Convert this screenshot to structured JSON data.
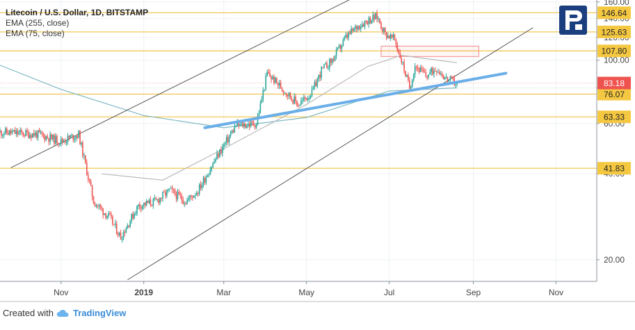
{
  "legend": {
    "title": "Litecoin / U.S. Dollar, 1D, BITSTAMP",
    "ema_long": "EMA (255, close)",
    "ema_short": "EMA (75, close)"
  },
  "footer": {
    "created_with": "Created with",
    "brand": "TradingView"
  },
  "colors": {
    "up": "#26a69a",
    "down": "#ef5350",
    "level_line": "#f0c040",
    "ema_long": "#7fb8c4",
    "ema_short": "#b8b8b8",
    "trend_blue": "#6aaee8",
    "channel": "#555555",
    "badge_gold": "#f5c842",
    "badge_red": "#ef5350",
    "logo_blue": "#1b3f7e"
  },
  "chart_data": {
    "type": "candlestick",
    "y_ticks": [
      20,
      40,
      60,
      80,
      100,
      120,
      140,
      160
    ],
    "y_tick_labels": [
      "20.00",
      "40.00",
      "60.00",
      "80.00",
      "100.00",
      "120.00",
      "140.00",
      "160.00"
    ],
    "x_labels": [
      "Nov",
      "2019",
      "Mar",
      "May",
      "Jul",
      "Sep",
      "Nov"
    ],
    "x_dates": [
      "2018-11-01",
      "2019-01-01",
      "2019-03-01",
      "2019-05-01",
      "2019-07-01",
      "2019-09-01",
      "2019-11-01"
    ],
    "x_range": [
      "2018-09-17",
      "2019-12-01"
    ],
    "y_scale": "log",
    "levels": [
      146.64,
      125.63,
      107.8,
      76.07,
      63.33,
      41.83
    ],
    "level_labels": [
      "146.64",
      "125.63",
      "107.80",
      "76.07",
      "63.33",
      "41.83"
    ],
    "last_price": 83.18,
    "last_price_label": "83.18",
    "price_path": [
      [
        "2018-09-17",
        56
      ],
      [
        "2018-10-15",
        55
      ],
      [
        "2018-11-01",
        52
      ],
      [
        "2018-11-14",
        55
      ],
      [
        "2018-11-25",
        32
      ],
      [
        "2018-12-07",
        28
      ],
      [
        "2018-12-15",
        24
      ],
      [
        "2018-12-28",
        31
      ],
      [
        "2019-01-10",
        32
      ],
      [
        "2019-01-20",
        35
      ],
      [
        "2019-02-01",
        32
      ],
      [
        "2019-02-10",
        35
      ],
      [
        "2019-02-24",
        46
      ],
      [
        "2019-03-10",
        59
      ],
      [
        "2019-03-25",
        60
      ],
      [
        "2019-04-02",
        90
      ],
      [
        "2019-04-15",
        78
      ],
      [
        "2019-04-25",
        70
      ],
      [
        "2019-05-05",
        77
      ],
      [
        "2019-05-12",
        92
      ],
      [
        "2019-05-20",
        100
      ],
      [
        "2019-05-30",
        120
      ],
      [
        "2019-06-08",
        132
      ],
      [
        "2019-06-15",
        138
      ],
      [
        "2019-06-22",
        142
      ],
      [
        "2019-06-28",
        124
      ],
      [
        "2019-07-05",
        118
      ],
      [
        "2019-07-10",
        100
      ],
      [
        "2019-07-16",
        80
      ],
      [
        "2019-07-20",
        96
      ],
      [
        "2019-07-28",
        88
      ],
      [
        "2019-08-05",
        94
      ],
      [
        "2019-08-12",
        86
      ],
      [
        "2019-08-20",
        83
      ]
    ],
    "ema_255": [
      [
        "2018-09-17",
        96
      ],
      [
        "2018-11-01",
        79
      ],
      [
        "2019-01-01",
        64
      ],
      [
        "2019-03-01",
        58
      ],
      [
        "2019-05-01",
        63
      ],
      [
        "2019-07-01",
        78
      ],
      [
        "2019-08-20",
        80
      ]
    ],
    "ema_75": [
      [
        "2018-12-01",
        40
      ],
      [
        "2019-01-15",
        38
      ],
      [
        "2019-03-01",
        49
      ],
      [
        "2019-05-01",
        70
      ],
      [
        "2019-06-15",
        95
      ],
      [
        "2019-07-10",
        104
      ],
      [
        "2019-08-20",
        98
      ]
    ],
    "trend_line": [
      [
        "2019-02-15",
        58
      ],
      [
        "2019-09-25",
        90
      ]
    ],
    "channel_upper": [
      [
        "2018-09-25",
        42
      ],
      [
        "2019-06-15",
        175
      ]
    ],
    "channel_lower": [
      [
        "2018-12-20",
        17
      ],
      [
        "2019-10-15",
        130
      ]
    ],
    "resistance_box": {
      "x": [
        "2019-06-25",
        "2019-09-05"
      ],
      "y": [
        103,
        112
      ]
    }
  }
}
